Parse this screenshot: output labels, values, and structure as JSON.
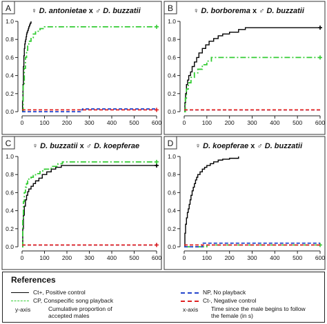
{
  "colors": {
    "ct_plus": "#000000",
    "cp": "#33cc33",
    "np": "#2244cc",
    "ct_minus": "#e02020"
  },
  "chart_data": [
    {
      "type": "line",
      "panel_letter": "A",
      "title_female_symbol": "♀",
      "title_female": "D. antonietae",
      "title_x": "x",
      "title_male_symbol": "♂",
      "title_male": "D. buzzatii",
      "xlim": [
        0,
        600
      ],
      "ylim": [
        0,
        1
      ],
      "xticks": [
        "0",
        "100",
        "200",
        "300",
        "400",
        "500",
        "600"
      ],
      "yticks": [
        "0.0",
        "0.2",
        "0.4",
        "0.6",
        "0.8",
        "1.0"
      ],
      "series": [
        {
          "key": "ct_plus",
          "style": "solid",
          "x": [
            0,
            2,
            4,
            6,
            8,
            10,
            12,
            14,
            16,
            18,
            20,
            22,
            25,
            28,
            30,
            33,
            36,
            40
          ],
          "y": [
            0,
            0.12,
            0.3,
            0.5,
            0.62,
            0.7,
            0.75,
            0.78,
            0.8,
            0.83,
            0.86,
            0.88,
            0.9,
            0.92,
            0.94,
            0.96,
            0.98,
            1.0
          ]
        },
        {
          "key": "cp",
          "style": "dashdot",
          "x": [
            0,
            5,
            10,
            15,
            20,
            25,
            30,
            40,
            50,
            60,
            80,
            100,
            600
          ],
          "y": [
            0,
            0.3,
            0.48,
            0.6,
            0.68,
            0.74,
            0.78,
            0.82,
            0.86,
            0.89,
            0.92,
            0.94,
            0.94
          ],
          "end_marker": true
        },
        {
          "key": "np",
          "style": "dashed",
          "x": [
            0,
            250,
            260,
            270,
            600
          ],
          "y": [
            0,
            0,
            0.02,
            0.03,
            0.03
          ]
        },
        {
          "key": "ct_minus",
          "style": "dashed",
          "x": [
            0,
            600
          ],
          "y": [
            0.02,
            0.02
          ],
          "end_marker": true
        }
      ]
    },
    {
      "type": "line",
      "panel_letter": "B",
      "title_female_symbol": "♀",
      "title_female": "D. borborema",
      "title_x": "x",
      "title_male_symbol": "♂",
      "title_male": "D. buzzatii",
      "xlim": [
        0,
        600
      ],
      "ylim": [
        0,
        1
      ],
      "xticks": [
        "0",
        "100",
        "200",
        "300",
        "400",
        "500",
        "600"
      ],
      "yticks": [
        "0.0",
        "0.2",
        "0.4",
        "0.6",
        "0.8",
        "1.0"
      ],
      "series": [
        {
          "key": "ct_plus",
          "style": "solid",
          "x": [
            0,
            3,
            6,
            10,
            15,
            20,
            28,
            35,
            45,
            55,
            65,
            80,
            95,
            110,
            130,
            150,
            170,
            200,
            240,
            270,
            600
          ],
          "y": [
            0,
            0.1,
            0.2,
            0.3,
            0.35,
            0.4,
            0.44,
            0.5,
            0.55,
            0.6,
            0.65,
            0.7,
            0.74,
            0.78,
            0.81,
            0.84,
            0.86,
            0.88,
            0.91,
            0.93,
            0.93
          ],
          "end_marker": true
        },
        {
          "key": "cp",
          "style": "dashdot",
          "x": [
            0,
            5,
            10,
            18,
            30,
            45,
            60,
            80,
            100,
            120,
            600
          ],
          "y": [
            0,
            0.15,
            0.25,
            0.32,
            0.38,
            0.43,
            0.47,
            0.52,
            0.56,
            0.6,
            0.6
          ],
          "end_marker": true
        },
        {
          "key": "np",
          "style": "dashed",
          "x": [
            0,
            600
          ],
          "y": [
            0.02,
            0.02
          ]
        },
        {
          "key": "ct_minus",
          "style": "dashed",
          "x": [
            0,
            600
          ],
          "y": [
            0.02,
            0.02
          ]
        }
      ]
    },
    {
      "type": "line",
      "panel_letter": "C",
      "title_female_symbol": "♀",
      "title_female": "D. buzzatii",
      "title_x": "x",
      "title_male_symbol": "♂",
      "title_male": "D. koepferae",
      "xlim": [
        0,
        600
      ],
      "ylim": [
        0,
        1
      ],
      "xticks": [
        "0",
        "100",
        "200",
        "300",
        "400",
        "500",
        "600"
      ],
      "yticks": [
        "0.0",
        "0.2",
        "0.4",
        "0.6",
        "0.8",
        "1.0"
      ],
      "series": [
        {
          "key": "ct_plus",
          "style": "solid",
          "x": [
            0,
            3,
            6,
            10,
            15,
            20,
            25,
            30,
            40,
            50,
            60,
            75,
            90,
            110,
            130,
            150,
            175,
            200,
            600
          ],
          "y": [
            0,
            0.2,
            0.35,
            0.45,
            0.52,
            0.57,
            0.61,
            0.64,
            0.67,
            0.7,
            0.73,
            0.76,
            0.8,
            0.83,
            0.86,
            0.88,
            0.9,
            0.9,
            0.9
          ],
          "end_marker": true
        },
        {
          "key": "cp",
          "style": "dashdot",
          "x": [
            0,
            3,
            6,
            10,
            15,
            20,
            25,
            30,
            40,
            50,
            60,
            80,
            100,
            130,
            160,
            180,
            600
          ],
          "y": [
            0,
            0.3,
            0.5,
            0.6,
            0.66,
            0.7,
            0.73,
            0.75,
            0.77,
            0.79,
            0.81,
            0.84,
            0.86,
            0.89,
            0.92,
            0.94,
            0.94
          ],
          "end_marker": true
        },
        {
          "key": "np",
          "style": "dashed",
          "x": [
            0,
            590,
            600
          ],
          "y": [
            0.02,
            0.02,
            0.04
          ]
        },
        {
          "key": "ct_minus",
          "style": "dashed",
          "x": [
            0,
            600
          ],
          "y": [
            0.02,
            0.02
          ],
          "end_marker": true
        }
      ]
    },
    {
      "type": "line",
      "panel_letter": "D",
      "title_female_symbol": "♀",
      "title_female": "D. koepferae",
      "title_x": "x",
      "title_male_symbol": "♂",
      "title_male": "D. buzzatii",
      "xlim": [
        0,
        600
      ],
      "ylim": [
        0,
        1
      ],
      "xticks": [
        "0",
        "100",
        "200",
        "300",
        "400",
        "500",
        "600"
      ],
      "yticks": [
        "0.0",
        "0.2",
        "0.4",
        "0.6",
        "0.8",
        "1.0"
      ],
      "series": [
        {
          "key": "ct_plus",
          "style": "solid",
          "x": [
            0,
            3,
            6,
            10,
            14,
            18,
            22,
            26,
            30,
            35,
            40,
            45,
            50,
            55,
            60,
            70,
            80,
            90,
            100,
            115,
            130,
            150,
            170,
            200,
            240
          ],
          "y": [
            0,
            0.15,
            0.25,
            0.32,
            0.38,
            0.42,
            0.47,
            0.52,
            0.57,
            0.62,
            0.66,
            0.7,
            0.74,
            0.77,
            0.8,
            0.83,
            0.86,
            0.88,
            0.9,
            0.92,
            0.94,
            0.96,
            0.97,
            0.98,
            1.0
          ]
        },
        {
          "key": "cp",
          "style": "dashdot",
          "x": [
            0,
            100,
            600
          ],
          "y": [
            0,
            0.02,
            0.02
          ],
          "end_marker": true
        },
        {
          "key": "np",
          "style": "dashed",
          "x": [
            0,
            80,
            600
          ],
          "y": [
            0,
            0.04,
            0.04
          ]
        },
        {
          "key": "ct_minus",
          "style": "dashed",
          "x": [
            0,
            600
          ],
          "y": [
            0.02,
            0.02
          ]
        }
      ]
    }
  ],
  "references": {
    "title": "References",
    "ct_plus": "Ct+, Positive control",
    "cp": "CP, Conspecific song playback",
    "np": "NP, No playback",
    "ct_minus": "Ct-, Negative control",
    "y_axis_key": "y-axis",
    "y_axis_desc": "Cumulative proportion of accepted males",
    "x_axis_key": "x-axis",
    "x_axis_desc": "Time since the male begins to follow the female (in s)"
  }
}
